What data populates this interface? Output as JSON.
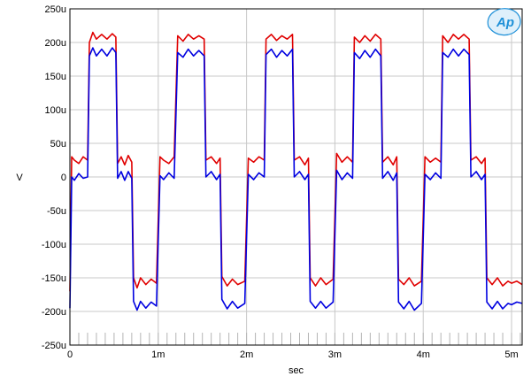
{
  "chart_data": {
    "type": "line",
    "title": "",
    "xlabel": "sec",
    "ylabel": "V",
    "xlim": [
      0,
      0.00512
    ],
    "ylim": [
      -0.00025,
      0.00025
    ],
    "grid": true,
    "x_ticks": [
      {
        "value": 0,
        "label": "0"
      },
      {
        "value": 0.001,
        "label": "1m"
      },
      {
        "value": 0.002,
        "label": "2m"
      },
      {
        "value": 0.003,
        "label": "3m"
      },
      {
        "value": 0.004,
        "label": "4m"
      },
      {
        "value": 0.005,
        "label": "5m"
      }
    ],
    "y_ticks": [
      {
        "value": 0.00025,
        "label": "250u"
      },
      {
        "value": 0.0002,
        "label": "200u"
      },
      {
        "value": 0.00015,
        "label": "150u"
      },
      {
        "value": 0.0001,
        "label": "100u"
      },
      {
        "value": 5e-05,
        "label": "50u"
      },
      {
        "value": 0,
        "label": "0"
      },
      {
        "value": -5e-05,
        "label": "-50u"
      },
      {
        "value": -0.0001,
        "label": "-100u"
      },
      {
        "value": -0.00015,
        "label": "-150u"
      },
      {
        "value": -0.0002,
        "label": "-200u"
      },
      {
        "value": -0.00025,
        "label": "-250u"
      }
    ],
    "series": [
      {
        "color": "#e00000",
        "signal": {
          "period": 0.001,
          "start_offset": 0.0,
          "levels": {
            "high": 0.00021,
            "mid_high": 2.5e-05,
            "low": -0.000155,
            "mid_low": 2.5e-05
          },
          "description_points": "stepped square wave with ringing"
        },
        "points": [
          [
            0.0,
            -0.00017
          ],
          [
            2e-05,
            3e-05
          ],
          [
            5e-05,
            2.5e-05
          ],
          [
            0.0001,
            2e-05
          ],
          [
            0.00015,
            3e-05
          ],
          [
            0.0002,
            2.5e-05
          ],
          [
            0.00022,
            0.0002
          ],
          [
            0.00026,
            0.000215
          ],
          [
            0.0003,
            0.000205
          ],
          [
            0.00036,
            0.000212
          ],
          [
            0.00042,
            0.000205
          ],
          [
            0.00048,
            0.000213
          ],
          [
            0.00052,
            0.000208
          ],
          [
            0.00054,
            2e-05
          ],
          [
            0.00058,
            3e-05
          ],
          [
            0.00062,
            1.8e-05
          ],
          [
            0.00066,
            3.2e-05
          ],
          [
            0.0007,
            2.2e-05
          ],
          [
            0.00072,
            -0.00015
          ],
          [
            0.00076,
            -0.000165
          ],
          [
            0.0008,
            -0.00015
          ],
          [
            0.00086,
            -0.00016
          ],
          [
            0.00092,
            -0.000152
          ],
          [
            0.00098,
            -0.000158
          ],
          [
            0.00102,
            3e-05
          ],
          [
            0.00106,
            2.5e-05
          ],
          [
            0.00112,
            2e-05
          ],
          [
            0.00118,
            3e-05
          ],
          [
            0.00122,
            0.00021
          ],
          [
            0.00128,
            0.000202
          ],
          [
            0.00134,
            0.000212
          ],
          [
            0.0014,
            0.000205
          ],
          [
            0.00146,
            0.00021
          ],
          [
            0.00152,
            0.000205
          ],
          [
            0.00154,
            2.5e-05
          ],
          [
            0.0016,
            3e-05
          ],
          [
            0.00166,
            2e-05
          ],
          [
            0.0017,
            2.8e-05
          ],
          [
            0.00172,
            -0.000148
          ],
          [
            0.00178,
            -0.000162
          ],
          [
            0.00184,
            -0.000152
          ],
          [
            0.0019,
            -0.00016
          ],
          [
            0.00198,
            -0.000155
          ],
          [
            0.00202,
            2.8e-05
          ],
          [
            0.00208,
            2.2e-05
          ],
          [
            0.00214,
            3e-05
          ],
          [
            0.0022,
            2.5e-05
          ],
          [
            0.00222,
            0.000205
          ],
          [
            0.00228,
            0.000212
          ],
          [
            0.00234,
            0.000203
          ],
          [
            0.0024,
            0.00021
          ],
          [
            0.00246,
            0.000205
          ],
          [
            0.00252,
            0.000212
          ],
          [
            0.00254,
            2.5e-05
          ],
          [
            0.0026,
            3e-05
          ],
          [
            0.00266,
            1.8e-05
          ],
          [
            0.0027,
            2.8e-05
          ],
          [
            0.00272,
            -0.00015
          ],
          [
            0.00278,
            -0.000162
          ],
          [
            0.00284,
            -0.00015
          ],
          [
            0.0029,
            -0.00016
          ],
          [
            0.00298,
            -0.000152
          ],
          [
            0.00302,
            3.5e-05
          ],
          [
            0.00308,
            2.2e-05
          ],
          [
            0.00314,
            3e-05
          ],
          [
            0.0032,
            2.2e-05
          ],
          [
            0.00322,
            0.000208
          ],
          [
            0.00328,
            0.0002
          ],
          [
            0.00334,
            0.00021
          ],
          [
            0.0034,
            0.000202
          ],
          [
            0.00346,
            0.000212
          ],
          [
            0.00352,
            0.000205
          ],
          [
            0.00354,
            2.2e-05
          ],
          [
            0.0036,
            3e-05
          ],
          [
            0.00366,
            1.8e-05
          ],
          [
            0.0037,
            3e-05
          ],
          [
            0.00372,
            -0.000152
          ],
          [
            0.00378,
            -0.00016
          ],
          [
            0.00384,
            -0.00015
          ],
          [
            0.0039,
            -0.000162
          ],
          [
            0.00398,
            -0.000155
          ],
          [
            0.00402,
            3e-05
          ],
          [
            0.00408,
            2.2e-05
          ],
          [
            0.00414,
            2.8e-05
          ],
          [
            0.0042,
            2.2e-05
          ],
          [
            0.00422,
            0.00021
          ],
          [
            0.00428,
            0.0002
          ],
          [
            0.00434,
            0.000212
          ],
          [
            0.0044,
            0.000205
          ],
          [
            0.00446,
            0.000212
          ],
          [
            0.00452,
            0.000205
          ],
          [
            0.00454,
            2.5e-05
          ],
          [
            0.0046,
            3e-05
          ],
          [
            0.00466,
            2e-05
          ],
          [
            0.0047,
            2.8e-05
          ],
          [
            0.00472,
            -0.00015
          ],
          [
            0.00478,
            -0.00016
          ],
          [
            0.00484,
            -0.00015
          ],
          [
            0.0049,
            -0.000162
          ],
          [
            0.00496,
            -0.000155
          ],
          [
            0.005,
            -0.000158
          ],
          [
            0.00506,
            -0.000155
          ],
          [
            0.00512,
            -0.00016
          ]
        ]
      },
      {
        "color": "#0000e0",
        "points": [
          [
            0.0,
            -0.000195
          ],
          [
            2e-05,
            0.0
          ],
          [
            5e-05,
            -5e-06
          ],
          [
            0.0001,
            5e-06
          ],
          [
            0.00015,
            -2e-06
          ],
          [
            0.0002,
            0.0
          ],
          [
            0.00022,
            0.00018
          ],
          [
            0.00026,
            0.000192
          ],
          [
            0.0003,
            0.00018
          ],
          [
            0.00036,
            0.00019
          ],
          [
            0.00042,
            0.00018
          ],
          [
            0.00048,
            0.000192
          ],
          [
            0.00052,
            0.000185
          ],
          [
            0.00054,
            -2e-06
          ],
          [
            0.00058,
            8e-06
          ],
          [
            0.00062,
            -5e-06
          ],
          [
            0.00066,
            8e-06
          ],
          [
            0.0007,
            -2e-06
          ],
          [
            0.00072,
            -0.000185
          ],
          [
            0.00076,
            -0.000198
          ],
          [
            0.0008,
            -0.000185
          ],
          [
            0.00086,
            -0.000195
          ],
          [
            0.00092,
            -0.000186
          ],
          [
            0.00098,
            -0.000192
          ],
          [
            0.00102,
            2e-06
          ],
          [
            0.00106,
            -4e-06
          ],
          [
            0.00112,
            6e-06
          ],
          [
            0.00118,
            -2e-06
          ],
          [
            0.00122,
            0.000185
          ],
          [
            0.00128,
            0.000178
          ],
          [
            0.00134,
            0.00019
          ],
          [
            0.0014,
            0.00018
          ],
          [
            0.00146,
            0.000188
          ],
          [
            0.00152,
            0.00018
          ],
          [
            0.00154,
            0.0
          ],
          [
            0.0016,
            8e-06
          ],
          [
            0.00166,
            -4e-06
          ],
          [
            0.0017,
            4e-06
          ],
          [
            0.00172,
            -0.000182
          ],
          [
            0.00178,
            -0.000196
          ],
          [
            0.00184,
            -0.000185
          ],
          [
            0.0019,
            -0.000195
          ],
          [
            0.00198,
            -0.000188
          ],
          [
            0.00202,
            4e-06
          ],
          [
            0.00208,
            -4e-06
          ],
          [
            0.00214,
            6e-06
          ],
          [
            0.0022,
            0.0
          ],
          [
            0.00222,
            0.000182
          ],
          [
            0.00228,
            0.00019
          ],
          [
            0.00234,
            0.000178
          ],
          [
            0.0024,
            0.000188
          ],
          [
            0.00246,
            0.00018
          ],
          [
            0.00252,
            0.00019
          ],
          [
            0.00254,
            0.0
          ],
          [
            0.0026,
            8e-06
          ],
          [
            0.00266,
            -4e-06
          ],
          [
            0.0027,
            4e-06
          ],
          [
            0.00272,
            -0.000185
          ],
          [
            0.00278,
            -0.000195
          ],
          [
            0.00284,
            -0.000185
          ],
          [
            0.0029,
            -0.000195
          ],
          [
            0.00298,
            -0.000186
          ],
          [
            0.00302,
            1e-05
          ],
          [
            0.00308,
            -4e-06
          ],
          [
            0.00314,
            6e-06
          ],
          [
            0.0032,
            -2e-06
          ],
          [
            0.00322,
            0.000185
          ],
          [
            0.00328,
            0.000176
          ],
          [
            0.00334,
            0.000188
          ],
          [
            0.0034,
            0.000178
          ],
          [
            0.00346,
            0.00019
          ],
          [
            0.00352,
            0.00018
          ],
          [
            0.00354,
            -2e-06
          ],
          [
            0.0036,
            8e-06
          ],
          [
            0.00366,
            -5e-06
          ],
          [
            0.0037,
            6e-06
          ],
          [
            0.00372,
            -0.000186
          ],
          [
            0.00378,
            -0.000196
          ],
          [
            0.00384,
            -0.000185
          ],
          [
            0.0039,
            -0.000198
          ],
          [
            0.00398,
            -0.000188
          ],
          [
            0.00402,
            4e-06
          ],
          [
            0.00408,
            -4e-06
          ],
          [
            0.00414,
            6e-06
          ],
          [
            0.0042,
            -2e-06
          ],
          [
            0.00422,
            0.000185
          ],
          [
            0.00428,
            0.000178
          ],
          [
            0.00434,
            0.00019
          ],
          [
            0.0044,
            0.00018
          ],
          [
            0.00446,
            0.00019
          ],
          [
            0.00452,
            0.000182
          ],
          [
            0.00454,
            0.0
          ],
          [
            0.0046,
            8e-06
          ],
          [
            0.00466,
            -4e-06
          ],
          [
            0.0047,
            4e-06
          ],
          [
            0.00472,
            -0.000186
          ],
          [
            0.00478,
            -0.000196
          ],
          [
            0.00484,
            -0.000185
          ],
          [
            0.0049,
            -0.000196
          ],
          [
            0.00496,
            -0.000188
          ],
          [
            0.005,
            -0.00019
          ],
          [
            0.00506,
            -0.000186
          ],
          [
            0.00512,
            -0.000188
          ]
        ]
      }
    ]
  },
  "logo": {
    "text": "Ap",
    "color": "#1e90d8"
  }
}
